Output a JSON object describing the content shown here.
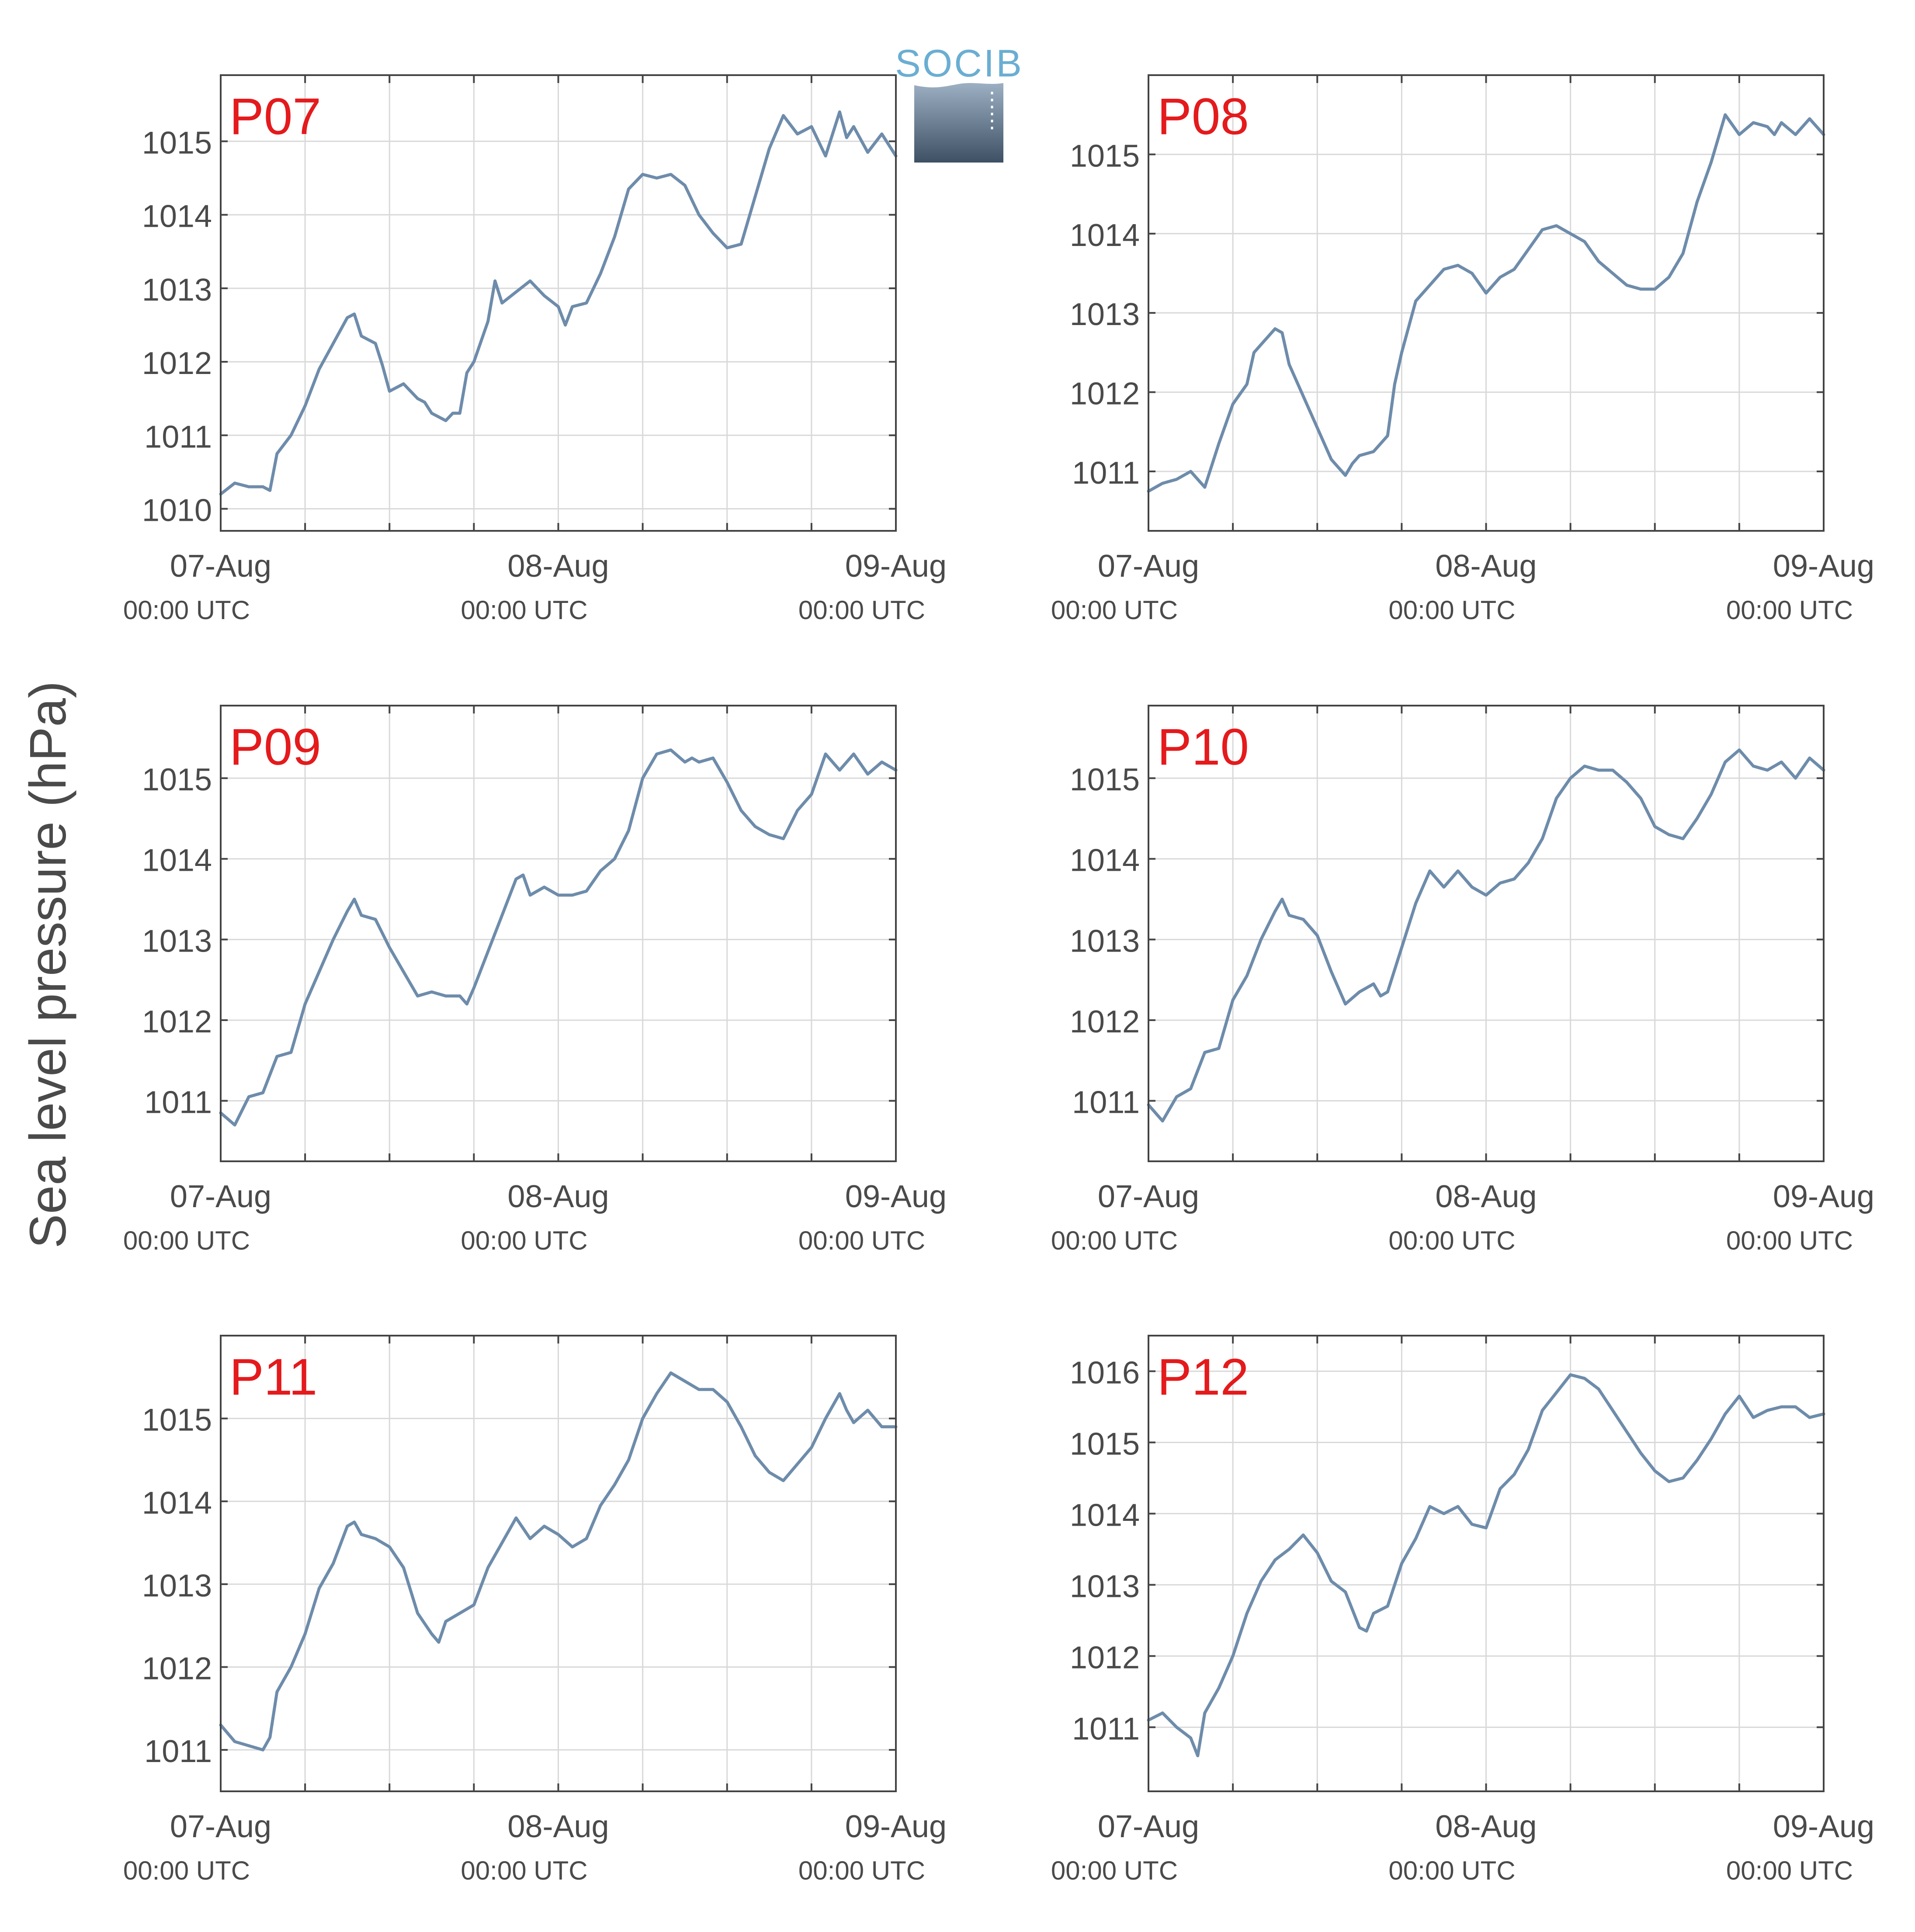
{
  "figure": {
    "ylabel": "Sea level pressure (hPa)",
    "logo_text": "SOCIB"
  },
  "colors": {
    "line": "#6e8cab",
    "panel_label": "#e41a1c",
    "grid": "#d9d9d9",
    "axis": "#444444",
    "text": "#4a4a4a",
    "logo_text": "#6aaed2",
    "logo_grad_top": "#9db0c3",
    "logo_grad_bottom": "#3d5064"
  },
  "chart_data": [
    {
      "type": "line",
      "panel_label": "P07",
      "x_ticks": [
        {
          "day": "07-Aug",
          "time": "00:00 UTC"
        },
        {
          "day": "08-Aug",
          "time": "00:00 UTC"
        },
        {
          "day": "09-Aug",
          "time": "00:00 UTC"
        }
      ],
      "xlim": [
        0,
        48
      ],
      "ylim": [
        1009.7,
        1015.9
      ],
      "yticks": [
        1010,
        1011,
        1012,
        1013,
        1014,
        1015
      ],
      "x_hours": [
        0,
        1,
        2,
        3,
        3.5,
        4,
        5,
        6,
        7,
        8,
        9,
        9.5,
        10,
        11,
        11.5,
        12,
        13,
        14,
        14.5,
        15,
        16,
        16.5,
        17,
        17.5,
        18,
        19,
        19.5,
        20,
        21,
        22,
        23,
        24,
        24.5,
        25,
        26,
        27,
        28,
        29,
        30,
        31,
        32,
        33,
        34,
        35,
        36,
        37,
        38,
        39,
        40,
        41,
        42,
        43,
        44,
        44.5,
        45,
        46,
        47,
        48
      ],
      "values": [
        1010.2,
        1010.35,
        1010.3,
        1010.3,
        1010.25,
        1010.75,
        1011.0,
        1011.4,
        1011.9,
        1012.25,
        1012.6,
        1012.65,
        1012.35,
        1012.25,
        1011.95,
        1011.6,
        1011.7,
        1011.5,
        1011.45,
        1011.3,
        1011.2,
        1011.3,
        1011.3,
        1011.85,
        1012.0,
        1012.55,
        1013.1,
        1012.8,
        1012.95,
        1013.1,
        1012.9,
        1012.75,
        1012.5,
        1012.75,
        1012.8,
        1013.2,
        1013.7,
        1014.35,
        1014.55,
        1014.5,
        1014.55,
        1014.4,
        1014.0,
        1013.75,
        1013.55,
        1013.6,
        1014.25,
        1014.9,
        1015.35,
        1015.1,
        1015.2,
        1014.8,
        1015.4,
        1015.05,
        1015.2,
        1014.85,
        1015.1,
        1014.8
      ]
    },
    {
      "type": "line",
      "panel_label": "P08",
      "x_ticks": [
        {
          "day": "07-Aug",
          "time": "00:00 UTC"
        },
        {
          "day": "08-Aug",
          "time": "00:00 UTC"
        },
        {
          "day": "09-Aug",
          "time": "00:00 UTC"
        }
      ],
      "xlim": [
        0,
        48
      ],
      "ylim": [
        1010.25,
        1016.0
      ],
      "yticks": [
        1011,
        1012,
        1013,
        1014,
        1015
      ],
      "x_hours": [
        0,
        1,
        2,
        3,
        4,
        5,
        6,
        7,
        7.5,
        8,
        9,
        9.5,
        10,
        11,
        12,
        13,
        14,
        14.5,
        15,
        16,
        17,
        17.5,
        18,
        19,
        20,
        21,
        22,
        23,
        24,
        25,
        26,
        27,
        28,
        29,
        30,
        31,
        32,
        33,
        34,
        35,
        36,
        37,
        38,
        39,
        40,
        41,
        42,
        43,
        44,
        44.5,
        45,
        46,
        47,
        48
      ],
      "values": [
        1010.75,
        1010.85,
        1010.9,
        1011.0,
        1010.8,
        1011.35,
        1011.85,
        1012.1,
        1012.5,
        1012.6,
        1012.8,
        1012.75,
        1012.35,
        1011.95,
        1011.55,
        1011.15,
        1010.95,
        1011.1,
        1011.2,
        1011.25,
        1011.45,
        1012.1,
        1012.5,
        1013.15,
        1013.35,
        1013.55,
        1013.6,
        1013.5,
        1013.25,
        1013.45,
        1013.55,
        1013.8,
        1014.05,
        1014.1,
        1014.0,
        1013.9,
        1013.65,
        1013.5,
        1013.35,
        1013.3,
        1013.3,
        1013.45,
        1013.75,
        1014.4,
        1014.9,
        1015.5,
        1015.25,
        1015.4,
        1015.35,
        1015.25,
        1015.4,
        1015.25,
        1015.45,
        1015.25
      ]
    },
    {
      "type": "line",
      "panel_label": "P09",
      "x_ticks": [
        {
          "day": "07-Aug",
          "time": "00:00 UTC"
        },
        {
          "day": "08-Aug",
          "time": "00:00 UTC"
        },
        {
          "day": "09-Aug",
          "time": "00:00 UTC"
        }
      ],
      "xlim": [
        0,
        48
      ],
      "ylim": [
        1010.25,
        1015.9
      ],
      "yticks": [
        1011,
        1012,
        1013,
        1014,
        1015
      ],
      "x_hours": [
        0,
        1,
        2,
        3,
        4,
        5,
        6,
        7,
        8,
        9,
        9.5,
        10,
        11,
        12,
        13,
        14,
        15,
        16,
        17,
        17.5,
        18,
        19,
        20,
        21,
        21.5,
        22,
        23,
        24,
        25,
        26,
        27,
        28,
        29,
        30,
        31,
        32,
        33,
        33.5,
        34,
        35,
        36,
        37,
        38,
        39,
        40,
        41,
        42,
        43,
        44,
        45,
        46,
        47,
        48
      ],
      "values": [
        1010.85,
        1010.7,
        1011.05,
        1011.1,
        1011.55,
        1011.6,
        1012.2,
        1012.6,
        1013.0,
        1013.35,
        1013.5,
        1013.3,
        1013.25,
        1012.9,
        1012.6,
        1012.3,
        1012.35,
        1012.3,
        1012.3,
        1012.2,
        1012.4,
        1012.85,
        1013.3,
        1013.75,
        1013.8,
        1013.55,
        1013.65,
        1013.55,
        1013.55,
        1013.6,
        1013.85,
        1014.0,
        1014.35,
        1015.0,
        1015.3,
        1015.35,
        1015.2,
        1015.25,
        1015.2,
        1015.25,
        1014.95,
        1014.6,
        1014.4,
        1014.3,
        1014.25,
        1014.6,
        1014.8,
        1015.3,
        1015.1,
        1015.3,
        1015.05,
        1015.2,
        1015.1
      ]
    },
    {
      "type": "line",
      "panel_label": "P10",
      "x_ticks": [
        {
          "day": "07-Aug",
          "time": "00:00 UTC"
        },
        {
          "day": "08-Aug",
          "time": "00:00 UTC"
        },
        {
          "day": "09-Aug",
          "time": "00:00 UTC"
        }
      ],
      "xlim": [
        0,
        48
      ],
      "ylim": [
        1010.25,
        1015.9
      ],
      "yticks": [
        1011,
        1012,
        1013,
        1014,
        1015
      ],
      "x_hours": [
        0,
        1,
        2,
        3,
        4,
        5,
        6,
        7,
        8,
        9,
        9.5,
        10,
        11,
        12,
        13,
        14,
        15,
        16,
        16.5,
        17,
        18,
        19,
        20,
        21,
        22,
        23,
        24,
        25,
        26,
        27,
        28,
        29,
        30,
        31,
        32,
        33,
        34,
        35,
        36,
        37,
        38,
        39,
        40,
        41,
        42,
        43,
        44,
        45,
        46,
        47,
        48
      ],
      "values": [
        1010.95,
        1010.75,
        1011.05,
        1011.15,
        1011.6,
        1011.65,
        1012.25,
        1012.55,
        1013.0,
        1013.35,
        1013.5,
        1013.3,
        1013.25,
        1013.05,
        1012.6,
        1012.2,
        1012.35,
        1012.45,
        1012.3,
        1012.35,
        1012.9,
        1013.45,
        1013.85,
        1013.65,
        1013.85,
        1013.65,
        1013.55,
        1013.7,
        1013.75,
        1013.95,
        1014.25,
        1014.75,
        1015.0,
        1015.15,
        1015.1,
        1015.1,
        1014.95,
        1014.75,
        1014.4,
        1014.3,
        1014.25,
        1014.5,
        1014.8,
        1015.2,
        1015.35,
        1015.15,
        1015.1,
        1015.2,
        1015.0,
        1015.25,
        1015.1
      ]
    },
    {
      "type": "line",
      "panel_label": "P11",
      "x_ticks": [
        {
          "day": "07-Aug",
          "time": "00:00 UTC"
        },
        {
          "day": "08-Aug",
          "time": "00:00 UTC"
        },
        {
          "day": "09-Aug",
          "time": "00:00 UTC"
        }
      ],
      "xlim": [
        0,
        48
      ],
      "ylim": [
        1010.5,
        1016.0
      ],
      "yticks": [
        1011,
        1012,
        1013,
        1014,
        1015
      ],
      "x_hours": [
        0,
        1,
        2,
        3,
        3.5,
        4,
        5,
        6,
        7,
        8,
        9,
        9.5,
        10,
        11,
        12,
        13,
        14,
        15,
        15.5,
        16,
        17,
        18,
        19,
        20,
        21,
        22,
        23,
        24,
        25,
        26,
        27,
        28,
        29,
        30,
        31,
        32,
        33,
        34,
        35,
        36,
        37,
        38,
        39,
        40,
        41,
        42,
        43,
        44,
        44.5,
        45,
        46,
        47,
        48
      ],
      "values": [
        1011.3,
        1011.1,
        1011.05,
        1011.0,
        1011.15,
        1011.7,
        1012.0,
        1012.4,
        1012.95,
        1013.25,
        1013.7,
        1013.75,
        1013.6,
        1013.55,
        1013.45,
        1013.2,
        1012.65,
        1012.4,
        1012.3,
        1012.55,
        1012.65,
        1012.75,
        1013.2,
        1013.5,
        1013.8,
        1013.55,
        1013.7,
        1013.6,
        1013.45,
        1013.55,
        1013.95,
        1014.2,
        1014.5,
        1015.0,
        1015.3,
        1015.55,
        1015.45,
        1015.35,
        1015.35,
        1015.2,
        1014.9,
        1014.55,
        1014.35,
        1014.25,
        1014.45,
        1014.65,
        1015.0,
        1015.3,
        1015.1,
        1014.95,
        1015.1,
        1014.9,
        1014.9
      ]
    },
    {
      "type": "line",
      "panel_label": "P12",
      "x_ticks": [
        {
          "day": "07-Aug",
          "time": "00:00 UTC"
        },
        {
          "day": "08-Aug",
          "time": "00:00 UTC"
        },
        {
          "day": "09-Aug",
          "time": "00:00 UTC"
        }
      ],
      "xlim": [
        0,
        48
      ],
      "ylim": [
        1010.1,
        1016.5
      ],
      "yticks": [
        1011,
        1012,
        1013,
        1014,
        1015,
        1016
      ],
      "x_hours": [
        0,
        1,
        2,
        3,
        3.5,
        4,
        5,
        6,
        7,
        8,
        9,
        10,
        11,
        12,
        13,
        14,
        15,
        15.5,
        16,
        17,
        18,
        19,
        20,
        21,
        22,
        23,
        24,
        25,
        26,
        27,
        28,
        29,
        30,
        31,
        32,
        33,
        34,
        35,
        36,
        37,
        38,
        39,
        40,
        41,
        42,
        43,
        44,
        45,
        46,
        47,
        48
      ],
      "values": [
        1011.1,
        1011.2,
        1011.0,
        1010.85,
        1010.6,
        1011.2,
        1011.55,
        1012.0,
        1012.6,
        1013.05,
        1013.35,
        1013.5,
        1013.7,
        1013.45,
        1013.05,
        1012.9,
        1012.4,
        1012.35,
        1012.6,
        1012.7,
        1013.3,
        1013.65,
        1014.1,
        1014.0,
        1014.1,
        1013.85,
        1013.8,
        1014.35,
        1014.55,
        1014.9,
        1015.45,
        1015.7,
        1015.95,
        1015.9,
        1015.75,
        1015.45,
        1015.15,
        1014.85,
        1014.6,
        1014.45,
        1014.5,
        1014.75,
        1015.05,
        1015.4,
        1015.65,
        1015.35,
        1015.45,
        1015.5,
        1015.5,
        1015.35,
        1015.4
      ]
    }
  ]
}
